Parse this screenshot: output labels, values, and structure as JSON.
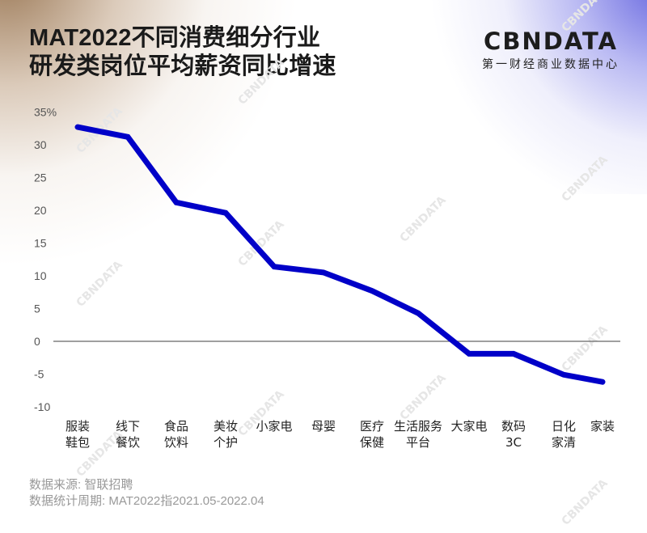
{
  "header": {
    "title_line1": "MAT2022不同消费细分行业",
    "title_line2": "研发类岗位平均薪资同比增速",
    "logo_text": "CBNDATA",
    "logo_subtitle": "第一财经商业数据中心"
  },
  "footer": {
    "source": "数据来源: 智联招聘",
    "period": "数据统计周期: MAT2022指2021.05-2022.04"
  },
  "watermark": "CBNDATA",
  "colors": {
    "line": "#0000c8",
    "zero_line": "#666666"
  },
  "chart_data": {
    "type": "line",
    "title": "MAT2022不同消费细分行业研发类岗位平均薪资同比增速",
    "xlabel": "",
    "ylabel": "",
    "y_unit": "%",
    "ylim": [
      -10,
      35
    ],
    "yticks": [
      "35%",
      "30",
      "25",
      "20",
      "15",
      "10",
      "5",
      "0",
      "-5",
      "-10"
    ],
    "grid": false,
    "legend": "none",
    "categories": [
      [
        "服装",
        "鞋包"
      ],
      [
        "线下",
        "餐饮"
      ],
      [
        "食品",
        "饮料"
      ],
      [
        "美妆",
        "个护"
      ],
      [
        "小家电"
      ],
      [
        "母婴"
      ],
      [
        "医疗",
        "保健"
      ],
      [
        "生活服务",
        "平台"
      ],
      [
        "大家电"
      ],
      [
        "数码",
        "3C"
      ],
      [
        "日化",
        "家清"
      ],
      [
        "家装"
      ]
    ],
    "category_names": [
      "服装鞋包",
      "线下餐饮",
      "食品饮料",
      "美妆个护",
      "小家电",
      "母婴",
      "医疗保健",
      "生活服务平台",
      "大家电",
      "数码3C",
      "日化家清",
      "家装"
    ],
    "series": [
      {
        "name": "研发类岗位平均薪资同比增速",
        "values": [
          32.7,
          31.2,
          21.2,
          19.6,
          11.4,
          10.5,
          7.7,
          4.3,
          -1.9,
          -1.9,
          -5.1,
          -6.2
        ]
      }
    ]
  }
}
